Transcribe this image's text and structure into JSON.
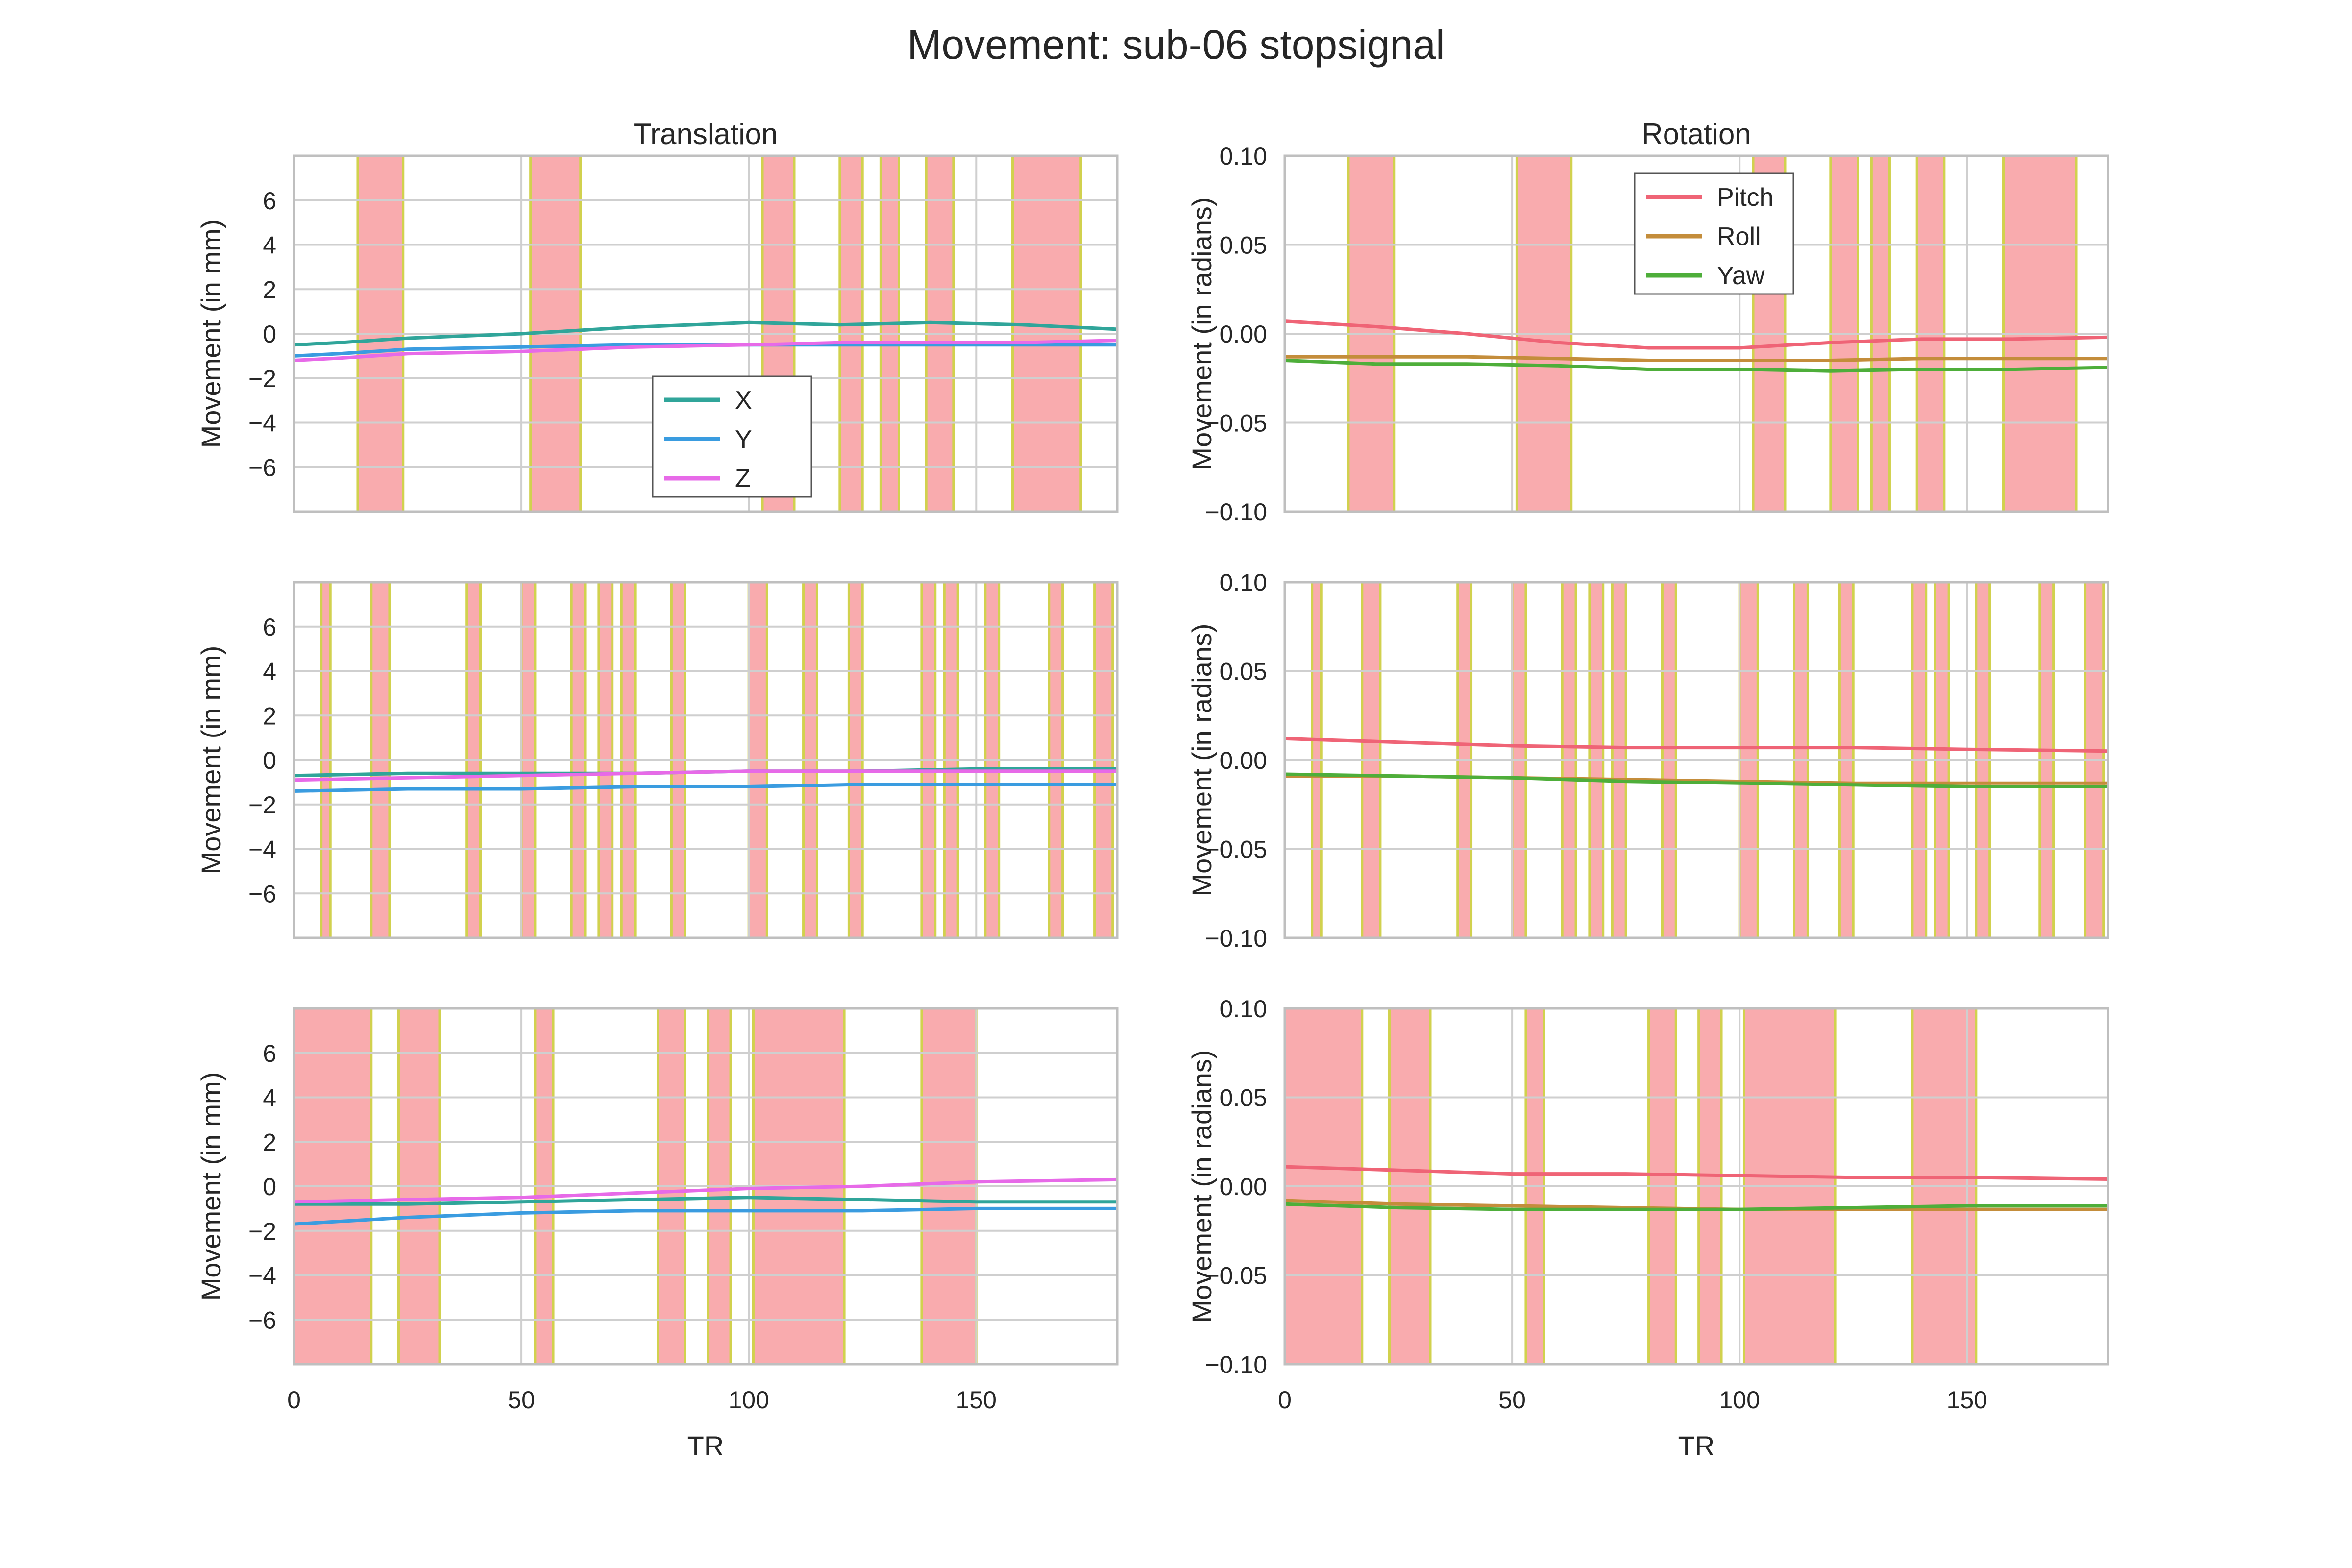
{
  "figure_title": "Movement: sub-06 stopsignal",
  "colors": {
    "X": "#30a59a",
    "Y": "#3a9ce0",
    "Z": "#e76ae8",
    "Pitch": "#ef6476",
    "Roll": "#c48d3b",
    "Yaw": "#4eae3a",
    "span_fill": "#f9a7aa",
    "span_edge": "#cfcf45",
    "grid": "#cfcfcf",
    "axes_edge": "#bfbfbf",
    "text": "#262626"
  },
  "chart_data": [
    {
      "type": "line",
      "panel": "translation-run-1",
      "title": "Translation",
      "xlabel": "",
      "ylabel": "Movement (in mm)",
      "xlim": [
        0,
        181
      ],
      "ylim": [
        -8,
        8
      ],
      "yticks": [
        6,
        4,
        2,
        0,
        -2,
        -4,
        -6
      ],
      "xticks": [],
      "legend": {
        "placement": "lower-center",
        "entries": [
          "X",
          "Y",
          "Z"
        ]
      },
      "grid": true,
      "series": [
        {
          "name": "X",
          "points": [
            [
              0,
              -0.5
            ],
            [
              10,
              -0.4
            ],
            [
              25,
              -0.2
            ],
            [
              50,
              0.0
            ],
            [
              75,
              0.3
            ],
            [
              100,
              0.5
            ],
            [
              120,
              0.4
            ],
            [
              140,
              0.5
            ],
            [
              160,
              0.4
            ],
            [
              181,
              0.2
            ]
          ]
        },
        {
          "name": "Y",
          "points": [
            [
              0,
              -1.0
            ],
            [
              10,
              -0.9
            ],
            [
              25,
              -0.7
            ],
            [
              50,
              -0.6
            ],
            [
              75,
              -0.5
            ],
            [
              100,
              -0.5
            ],
            [
              120,
              -0.5
            ],
            [
              140,
              -0.5
            ],
            [
              160,
              -0.5
            ],
            [
              181,
              -0.5
            ]
          ]
        },
        {
          "name": "Z",
          "points": [
            [
              0,
              -1.2
            ],
            [
              10,
              -1.1
            ],
            [
              25,
              -0.9
            ],
            [
              50,
              -0.8
            ],
            [
              75,
              -0.6
            ],
            [
              100,
              -0.5
            ],
            [
              120,
              -0.4
            ],
            [
              140,
              -0.4
            ],
            [
              160,
              -0.4
            ],
            [
              181,
              -0.3
            ]
          ]
        }
      ],
      "spans": [
        [
          14,
          24
        ],
        [
          52,
          63
        ],
        [
          103,
          110
        ],
        [
          120,
          125
        ],
        [
          129,
          133
        ],
        [
          139,
          145
        ],
        [
          158,
          173
        ]
      ]
    },
    {
      "type": "line",
      "panel": "rotation-run-1",
      "title": "Rotation",
      "xlabel": "",
      "ylabel": "Movement (in radians)",
      "xlim": [
        0,
        181
      ],
      "ylim": [
        -0.1,
        0.1
      ],
      "yticks": [
        "0.10",
        "0.05",
        "0.00",
        "−0.05",
        "−0.10"
      ],
      "xticks": [],
      "legend": {
        "placement": "upper-center",
        "entries": [
          "Pitch",
          "Roll",
          "Yaw"
        ]
      },
      "grid": true,
      "series": [
        {
          "name": "Pitch",
          "points": [
            [
              0,
              0.007
            ],
            [
              20,
              0.004
            ],
            [
              40,
              0.0
            ],
            [
              60,
              -0.005
            ],
            [
              80,
              -0.008
            ],
            [
              100,
              -0.008
            ],
            [
              120,
              -0.005
            ],
            [
              140,
              -0.003
            ],
            [
              160,
              -0.003
            ],
            [
              181,
              -0.002
            ]
          ]
        },
        {
          "name": "Roll",
          "points": [
            [
              0,
              -0.013
            ],
            [
              20,
              -0.013
            ],
            [
              40,
              -0.013
            ],
            [
              60,
              -0.014
            ],
            [
              80,
              -0.015
            ],
            [
              100,
              -0.015
            ],
            [
              120,
              -0.015
            ],
            [
              140,
              -0.014
            ],
            [
              160,
              -0.014
            ],
            [
              181,
              -0.014
            ]
          ]
        },
        {
          "name": "Yaw",
          "points": [
            [
              0,
              -0.015
            ],
            [
              20,
              -0.017
            ],
            [
              40,
              -0.017
            ],
            [
              60,
              -0.018
            ],
            [
              80,
              -0.02
            ],
            [
              100,
              -0.02
            ],
            [
              120,
              -0.021
            ],
            [
              140,
              -0.02
            ],
            [
              160,
              -0.02
            ],
            [
              181,
              -0.019
            ]
          ]
        }
      ],
      "spans": [
        [
          14,
          24
        ],
        [
          51,
          63
        ],
        [
          103,
          110
        ],
        [
          120,
          126
        ],
        [
          129,
          133
        ],
        [
          139,
          145
        ],
        [
          158,
          174
        ]
      ]
    },
    {
      "type": "line",
      "panel": "translation-run-2",
      "title": "",
      "xlabel": "",
      "ylabel": "Movement (in mm)",
      "xlim": [
        0,
        181
      ],
      "ylim": [
        -8,
        8
      ],
      "yticks": [
        6,
        4,
        2,
        0,
        -2,
        -4,
        -6
      ],
      "xticks": [],
      "grid": true,
      "series": [
        {
          "name": "X",
          "points": [
            [
              0,
              -0.7
            ],
            [
              25,
              -0.6
            ],
            [
              50,
              -0.6
            ],
            [
              75,
              -0.6
            ],
            [
              100,
              -0.5
            ],
            [
              125,
              -0.5
            ],
            [
              150,
              -0.4
            ],
            [
              181,
              -0.4
            ]
          ]
        },
        {
          "name": "Y",
          "points": [
            [
              0,
              -1.4
            ],
            [
              25,
              -1.3
            ],
            [
              50,
              -1.3
            ],
            [
              75,
              -1.2
            ],
            [
              100,
              -1.2
            ],
            [
              125,
              -1.1
            ],
            [
              150,
              -1.1
            ],
            [
              181,
              -1.1
            ]
          ]
        },
        {
          "name": "Z",
          "points": [
            [
              0,
              -0.9
            ],
            [
              25,
              -0.8
            ],
            [
              50,
              -0.7
            ],
            [
              75,
              -0.6
            ],
            [
              100,
              -0.5
            ],
            [
              125,
              -0.5
            ],
            [
              150,
              -0.5
            ],
            [
              181,
              -0.5
            ]
          ]
        }
      ],
      "spans": [
        [
          6,
          8
        ],
        [
          17,
          21
        ],
        [
          38,
          41
        ],
        [
          50,
          53
        ],
        [
          61,
          64
        ],
        [
          67,
          70
        ],
        [
          72,
          75
        ],
        [
          83,
          86
        ],
        [
          100,
          104
        ],
        [
          112,
          115
        ],
        [
          122,
          125
        ],
        [
          138,
          141
        ],
        [
          143,
          146
        ],
        [
          152,
          155
        ],
        [
          166,
          169
        ],
        [
          176,
          180
        ]
      ]
    },
    {
      "type": "line",
      "panel": "rotation-run-2",
      "title": "",
      "xlabel": "",
      "ylabel": "Movement (in radians)",
      "xlim": [
        0,
        181
      ],
      "ylim": [
        -0.1,
        0.1
      ],
      "yticks": [
        "0.10",
        "0.05",
        "0.00",
        "−0.05",
        "−0.10"
      ],
      "xticks": [],
      "grid": true,
      "series": [
        {
          "name": "Pitch",
          "points": [
            [
              0,
              0.012
            ],
            [
              25,
              0.01
            ],
            [
              50,
              0.008
            ],
            [
              75,
              0.007
            ],
            [
              100,
              0.007
            ],
            [
              125,
              0.007
            ],
            [
              150,
              0.006
            ],
            [
              181,
              0.005
            ]
          ]
        },
        {
          "name": "Roll",
          "points": [
            [
              0,
              -0.009
            ],
            [
              25,
              -0.009
            ],
            [
              50,
              -0.01
            ],
            [
              75,
              -0.011
            ],
            [
              100,
              -0.012
            ],
            [
              125,
              -0.013
            ],
            [
              150,
              -0.013
            ],
            [
              181,
              -0.013
            ]
          ]
        },
        {
          "name": "Yaw",
          "points": [
            [
              0,
              -0.008
            ],
            [
              25,
              -0.009
            ],
            [
              50,
              -0.01
            ],
            [
              75,
              -0.012
            ],
            [
              100,
              -0.013
            ],
            [
              125,
              -0.014
            ],
            [
              150,
              -0.015
            ],
            [
              181,
              -0.015
            ]
          ]
        }
      ],
      "spans": [
        [
          6,
          8
        ],
        [
          17,
          21
        ],
        [
          38,
          41
        ],
        [
          50,
          53
        ],
        [
          61,
          64
        ],
        [
          67,
          70
        ],
        [
          72,
          75
        ],
        [
          83,
          86
        ],
        [
          100,
          104
        ],
        [
          112,
          115
        ],
        [
          122,
          125
        ],
        [
          138,
          141
        ],
        [
          143,
          146
        ],
        [
          152,
          155
        ],
        [
          166,
          169
        ],
        [
          176,
          180
        ]
      ]
    },
    {
      "type": "line",
      "panel": "translation-run-3",
      "title": "",
      "xlabel": "TR",
      "ylabel": "Movement (in mm)",
      "xlim": [
        0,
        181
      ],
      "ylim": [
        -8,
        8
      ],
      "yticks": [
        6,
        4,
        2,
        0,
        -2,
        -4,
        -6
      ],
      "xticks": [
        0,
        50,
        100,
        150
      ],
      "grid": true,
      "series": [
        {
          "name": "X",
          "points": [
            [
              0,
              -0.8
            ],
            [
              25,
              -0.8
            ],
            [
              50,
              -0.7
            ],
            [
              75,
              -0.6
            ],
            [
              100,
              -0.5
            ],
            [
              125,
              -0.6
            ],
            [
              150,
              -0.7
            ],
            [
              181,
              -0.7
            ]
          ]
        },
        {
          "name": "Y",
          "points": [
            [
              0,
              -1.7
            ],
            [
              25,
              -1.4
            ],
            [
              50,
              -1.2
            ],
            [
              75,
              -1.1
            ],
            [
              100,
              -1.1
            ],
            [
              125,
              -1.1
            ],
            [
              150,
              -1.0
            ],
            [
              181,
              -1.0
            ]
          ]
        },
        {
          "name": "Z",
          "points": [
            [
              0,
              -0.7
            ],
            [
              25,
              -0.6
            ],
            [
              50,
              -0.5
            ],
            [
              75,
              -0.3
            ],
            [
              100,
              -0.1
            ],
            [
              125,
              0.0
            ],
            [
              150,
              0.2
            ],
            [
              181,
              0.3
            ]
          ]
        }
      ],
      "spans": [
        [
          0,
          17
        ],
        [
          23,
          32
        ],
        [
          53,
          57
        ],
        [
          80,
          86
        ],
        [
          91,
          96
        ],
        [
          101,
          121
        ],
        [
          138,
          150
        ]
      ]
    },
    {
      "type": "line",
      "panel": "rotation-run-3",
      "title": "",
      "xlabel": "TR",
      "ylabel": "Movement (in radians)",
      "xlim": [
        0,
        181
      ],
      "ylim": [
        -0.1,
        0.1
      ],
      "yticks": [
        "0.10",
        "0.05",
        "0.00",
        "−0.05",
        "−0.10"
      ],
      "xticks": [
        0,
        50,
        100,
        150
      ],
      "grid": true,
      "series": [
        {
          "name": "Pitch",
          "points": [
            [
              0,
              0.011
            ],
            [
              25,
              0.009
            ],
            [
              50,
              0.007
            ],
            [
              75,
              0.007
            ],
            [
              100,
              0.006
            ],
            [
              125,
              0.005
            ],
            [
              150,
              0.005
            ],
            [
              181,
              0.004
            ]
          ]
        },
        {
          "name": "Roll",
          "points": [
            [
              0,
              -0.008
            ],
            [
              25,
              -0.01
            ],
            [
              50,
              -0.011
            ],
            [
              75,
              -0.012
            ],
            [
              100,
              -0.013
            ],
            [
              125,
              -0.013
            ],
            [
              150,
              -0.013
            ],
            [
              181,
              -0.013
            ]
          ]
        },
        {
          "name": "Yaw",
          "points": [
            [
              0,
              -0.01
            ],
            [
              25,
              -0.012
            ],
            [
              50,
              -0.013
            ],
            [
              75,
              -0.013
            ],
            [
              100,
              -0.013
            ],
            [
              125,
              -0.012
            ],
            [
              150,
              -0.011
            ],
            [
              181,
              -0.011
            ]
          ]
        }
      ],
      "spans": [
        [
          0,
          17
        ],
        [
          23,
          32
        ],
        [
          53,
          57
        ],
        [
          80,
          86
        ],
        [
          91,
          96
        ],
        [
          101,
          121
        ],
        [
          138,
          152
        ]
      ]
    }
  ]
}
